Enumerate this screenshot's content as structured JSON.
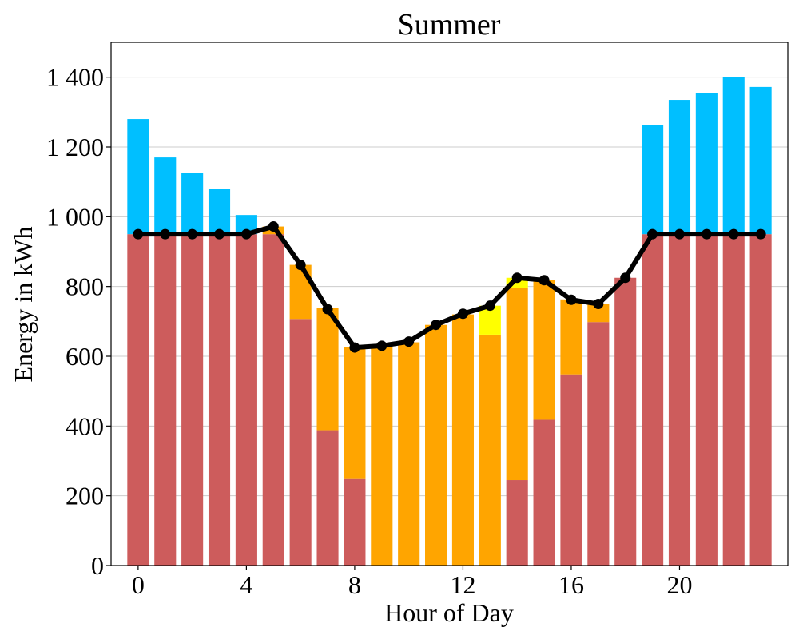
{
  "chart_data": {
    "type": "bar",
    "title": "Summer",
    "xlabel": "Hour of Day",
    "ylabel": "Energy in kWh",
    "xlim": [
      -1,
      24
    ],
    "ylim": [
      0,
      1500
    ],
    "xticks": [
      0,
      4,
      8,
      12,
      16,
      20
    ],
    "yticks": [
      0,
      200,
      400,
      600,
      800,
      1000,
      1200,
      1400
    ],
    "ytick_labels": [
      "0",
      "200",
      "400",
      "600",
      "800",
      "1 000",
      "1 200",
      "1 400"
    ],
    "grid": "horizontal",
    "legend": "none",
    "stacked": true,
    "x": [
      0,
      1,
      2,
      3,
      4,
      5,
      6,
      7,
      8,
      9,
      10,
      11,
      12,
      13,
      14,
      15,
      16,
      17,
      18,
      19,
      20,
      21,
      22,
      23
    ],
    "series": [
      {
        "color": "#cd5c5c",
        "values": [
          950,
          950,
          950,
          950,
          950,
          950,
          707,
          388,
          248,
          0,
          0,
          0,
          0,
          0,
          245,
          418,
          548,
          698,
          825,
          950,
          950,
          950,
          950,
          950
        ]
      },
      {
        "color": "#ffa500",
        "values": [
          0,
          0,
          0,
          0,
          0,
          22,
          155,
          350,
          378,
          630,
          640,
          690,
          720,
          662,
          550,
          400,
          215,
          52,
          0,
          0,
          0,
          0,
          0,
          0
        ]
      },
      {
        "color": "#ffff00",
        "values": [
          0,
          0,
          0,
          0,
          0,
          0,
          0,
          0,
          0,
          0,
          0,
          0,
          0,
          83,
          30,
          0,
          0,
          0,
          0,
          0,
          0,
          0,
          0,
          0
        ]
      },
      {
        "color": "#00bfff",
        "values": [
          330,
          220,
          175,
          130,
          55,
          0,
          0,
          0,
          0,
          0,
          0,
          0,
          0,
          0,
          0,
          0,
          0,
          0,
          0,
          312,
          385,
          405,
          450,
          422
        ]
      }
    ],
    "line_series": {
      "color": "#000000",
      "values": [
        950,
        950,
        950,
        950,
        950,
        972,
        862,
        735,
        625,
        630,
        642,
        690,
        722,
        745,
        825,
        818,
        762,
        750,
        825,
        950,
        950,
        950,
        950,
        950
      ]
    }
  }
}
